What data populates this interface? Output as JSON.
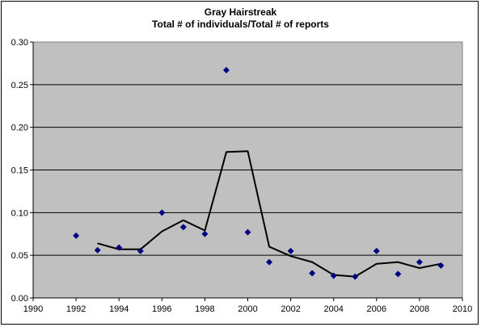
{
  "chart_data": {
    "type": "scatter",
    "title": "Gray Hairstreak",
    "subtitle": "Total # of individuals/Total # of reports",
    "xlim": [
      1990,
      2010
    ],
    "ylim": [
      0,
      0.3
    ],
    "x_ticks": [
      "1990",
      "1992",
      "1994",
      "1996",
      "1998",
      "2000",
      "2002",
      "2004",
      "2006",
      "2008",
      "2010"
    ],
    "y_ticks": [
      "0.00",
      "0.05",
      "0.10",
      "0.15",
      "0.20",
      "0.25",
      "0.30"
    ],
    "grid": true,
    "legend": "none",
    "series": [
      {
        "kind": "points",
        "marker": "diamond",
        "color": "#000080",
        "x": [
          1992,
          1993,
          1994,
          1995,
          1996,
          1997,
          1998,
          1999,
          2000,
          2001,
          2002,
          2003,
          2004,
          2005,
          2006,
          2007,
          2008,
          2009
        ],
        "values": [
          0.073,
          0.056,
          0.059,
          0.055,
          0.1,
          0.083,
          0.075,
          0.267,
          0.077,
          0.042,
          0.055,
          0.029,
          0.026,
          0.025,
          0.055,
          0.028,
          0.042,
          0.038
        ]
      },
      {
        "kind": "line",
        "color": "#000000",
        "x": [
          1993,
          1994,
          1995,
          1996,
          1997,
          1998,
          1999,
          2000,
          2001,
          2002,
          2003,
          2004,
          2005,
          2006,
          2007,
          2008,
          2009
        ],
        "values": [
          0.064,
          0.057,
          0.057,
          0.078,
          0.091,
          0.079,
          0.171,
          0.172,
          0.06,
          0.049,
          0.042,
          0.027,
          0.025,
          0.04,
          0.042,
          0.035,
          0.04
        ]
      }
    ],
    "colors": {
      "plot_background": "#c0c0c0",
      "gridline": "#000000"
    }
  }
}
